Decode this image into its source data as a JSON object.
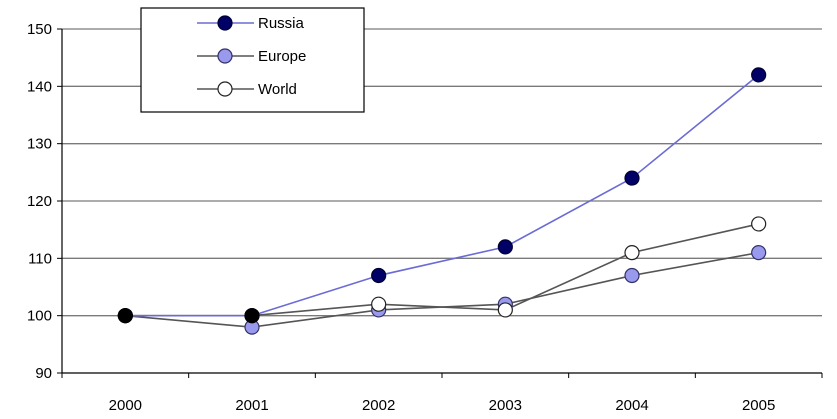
{
  "chart_data": {
    "type": "line",
    "title": "",
    "xlabel": "",
    "ylabel": "",
    "categories": [
      "2000",
      "2001",
      "2002",
      "2003",
      "2004",
      "2005"
    ],
    "ylim": [
      90,
      150
    ],
    "yticks": [
      90,
      100,
      110,
      120,
      130,
      140,
      150
    ],
    "grid": "horizontal",
    "legend_position": "top-left",
    "series": [
      {
        "name": "Russia",
        "values": [
          100,
          100,
          107,
          112,
          124,
          142
        ],
        "line_color": "#6b6bd6",
        "marker_fill": "#000066",
        "marker_stroke": "#000033"
      },
      {
        "name": "Europe",
        "values": [
          100,
          98,
          101,
          102,
          107,
          111
        ],
        "line_color": "#555555",
        "marker_fill": "#9999ee",
        "marker_stroke": "#333366"
      },
      {
        "name": "World",
        "values": [
          100,
          100,
          102,
          101,
          111,
          116
        ],
        "line_color": "#555555",
        "marker_fill": "#ffffff",
        "marker_stroke": "#222222"
      }
    ]
  }
}
